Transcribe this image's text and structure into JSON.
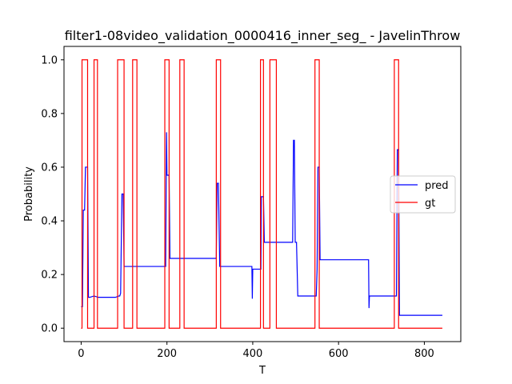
{
  "chart_data": {
    "type": "line",
    "title": "filter1-08video_validation_0000416_inner_seg_ - JavelinThrow",
    "xlabel": "T",
    "ylabel": "Probability",
    "xlim": [
      -40,
      885
    ],
    "ylim": [
      -0.05,
      1.05
    ],
    "xticks": [
      0,
      200,
      400,
      600,
      800
    ],
    "xtick_labels": [
      "0",
      "200",
      "400",
      "600",
      "800"
    ],
    "yticks": [
      0.0,
      0.2,
      0.4,
      0.6,
      0.8,
      1.0
    ],
    "ytick_labels": [
      "0.0",
      "0.2",
      "0.4",
      "0.6",
      "0.8",
      "1.0"
    ],
    "legend_position": "center-right",
    "series": [
      {
        "name": "pred",
        "color": "#0000ff",
        "x": [
          0,
          3,
          5,
          8,
          10,
          15,
          17,
          20,
          30,
          40,
          50,
          60,
          70,
          80,
          88,
          90,
          92,
          95,
          98,
          100,
          110,
          150,
          190,
          197,
          199,
          200,
          202,
          205,
          207,
          210,
          300,
          315,
          317,
          320,
          323,
          325,
          340,
          380,
          398,
          399,
          400,
          401,
          402,
          410,
          419,
          420,
          422,
          425,
          427,
          430,
          440,
          470,
          493,
          495,
          497,
          499,
          500,
          502,
          505,
          510,
          540,
          548,
          550,
          552,
          555,
          557,
          560,
          600,
          650,
          669,
          670,
          671,
          672,
          680,
          700,
          733,
          735,
          737,
          740,
          742,
          745,
          800,
          842
        ],
        "y": [
          0.08,
          0.08,
          0.44,
          0.44,
          0.6,
          0.6,
          0.115,
          0.115,
          0.12,
          0.115,
          0.115,
          0.115,
          0.115,
          0.115,
          0.12,
          0.12,
          0.13,
          0.5,
          0.5,
          0.23,
          0.23,
          0.23,
          0.23,
          0.23,
          0.73,
          0.57,
          0.57,
          0.57,
          0.26,
          0.26,
          0.26,
          0.26,
          0.54,
          0.54,
          0.23,
          0.23,
          0.23,
          0.23,
          0.23,
          0.11,
          0.22,
          0.22,
          0.22,
          0.22,
          0.22,
          0.49,
          0.49,
          0.49,
          0.32,
          0.32,
          0.32,
          0.32,
          0.32,
          0.7,
          0.7,
          0.32,
          0.32,
          0.32,
          0.12,
          0.12,
          0.12,
          0.12,
          0.22,
          0.6,
          0.6,
          0.255,
          0.255,
          0.255,
          0.255,
          0.255,
          0.255,
          0.075,
          0.12,
          0.12,
          0.12,
          0.12,
          0.12,
          0.665,
          0.665,
          0.048,
          0.048,
          0.048,
          0.048
        ]
      },
      {
        "name": "gt",
        "color": "#ff0000",
        "x": [
          0,
          2,
          2,
          15,
          15,
          30,
          30,
          38,
          38,
          85,
          85,
          100,
          100,
          120,
          120,
          130,
          130,
          195,
          195,
          205,
          205,
          230,
          230,
          240,
          240,
          315,
          315,
          325,
          325,
          418,
          418,
          425,
          425,
          440,
          440,
          455,
          455,
          545,
          545,
          555,
          555,
          730,
          730,
          740,
          740,
          842
        ],
        "y": [
          0,
          0,
          1,
          1,
          0,
          0,
          1,
          1,
          0,
          0,
          1,
          1,
          0,
          0,
          1,
          1,
          0,
          0,
          1,
          1,
          0,
          0,
          1,
          1,
          0,
          0,
          1,
          1,
          0,
          0,
          1,
          1,
          0,
          0,
          1,
          1,
          0,
          0,
          1,
          1,
          0,
          0,
          1,
          1,
          0,
          0
        ]
      }
    ]
  }
}
